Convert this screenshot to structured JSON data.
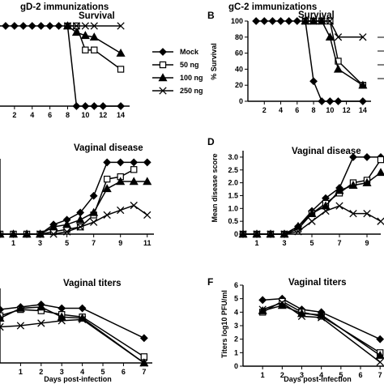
{
  "figure": {
    "group_titles": [
      "gD-2 immunizations",
      "gC-2 immunizations"
    ],
    "x_axis_label": "Days post-infection",
    "legend": [
      "Mock",
      "50 ng",
      "100 ng",
      "250 ng"
    ],
    "series_colors": {
      "Mock": "#000000",
      "50 ng": "#000000",
      "100 ng": "#000000",
      "250 ng": "#000000"
    }
  },
  "chart_data": [
    {
      "id": "A",
      "type": "line",
      "title": "Survival",
      "panel_letter": "",
      "xlabel": "",
      "ylabel": "",
      "x_ticks": [
        2,
        4,
        6,
        8,
        10,
        12,
        14
      ],
      "y_ticks": [],
      "xlim": [
        0,
        15
      ],
      "ylim": [
        0,
        100
      ],
      "series": [
        {
          "name": "Mock",
          "marker": "diamond",
          "x": [
            0,
            1,
            2,
            3,
            4,
            5,
            6,
            7,
            8,
            9,
            10,
            11,
            12,
            14
          ],
          "y": [
            100,
            100,
            100,
            100,
            100,
            100,
            100,
            100,
            100,
            0,
            0,
            0,
            0,
            0
          ]
        },
        {
          "name": "50 ng",
          "marker": "square",
          "x": [
            8,
            9,
            10,
            11,
            14
          ],
          "y": [
            100,
            100,
            70,
            70,
            46
          ]
        },
        {
          "name": "100 ng",
          "marker": "triangle",
          "x": [
            8,
            9,
            10,
            11,
            14
          ],
          "y": [
            100,
            92,
            88,
            86,
            66
          ]
        },
        {
          "name": "250 ng",
          "marker": "x",
          "x": [
            8,
            9,
            10,
            11,
            14
          ],
          "y": [
            100,
            100,
            100,
            100,
            100
          ]
        }
      ]
    },
    {
      "id": "B",
      "type": "line",
      "title": "Survival",
      "panel_letter": "B",
      "xlabel": "",
      "ylabel": "% Survival",
      "x_ticks": [
        2,
        4,
        6,
        8,
        10,
        12,
        14
      ],
      "y_ticks": [
        0,
        20,
        40,
        60,
        80,
        100
      ],
      "xlim": [
        0,
        15
      ],
      "ylim": [
        0,
        100
      ],
      "series": [
        {
          "name": "Mock",
          "marker": "diamond",
          "x": [
            1,
            2,
            3,
            4,
            5,
            6,
            7,
            8,
            9,
            10,
            11,
            14
          ],
          "y": [
            100,
            100,
            100,
            100,
            100,
            100,
            100,
            25,
            0,
            0,
            0,
            0
          ]
        },
        {
          "name": "50 ng",
          "marker": "square",
          "x": [
            7,
            8,
            9,
            10,
            11,
            14
          ],
          "y": [
            100,
            100,
            100,
            100,
            50,
            20
          ]
        },
        {
          "name": "100 ng",
          "marker": "triangle",
          "x": [
            7,
            8,
            9,
            10,
            11,
            14
          ],
          "y": [
            100,
            100,
            100,
            80,
            40,
            20
          ]
        },
        {
          "name": "250 ng",
          "marker": "x",
          "x": [
            7,
            8,
            9,
            10,
            11,
            14
          ],
          "y": [
            100,
            100,
            100,
            100,
            80,
            80
          ]
        }
      ]
    },
    {
      "id": "C",
      "type": "line",
      "title": "Vaginal disease",
      "panel_letter": "",
      "xlabel": "",
      "ylabel": "",
      "x_ticks": [
        1,
        3,
        5,
        7,
        9,
        11
      ],
      "x_tick_labels": [
        "1",
        "3",
        "5",
        "7",
        "9",
        "11"
      ],
      "y_ticks": [],
      "xlim": [
        0,
        11.5
      ],
      "ylim": [
        0,
        3.15
      ],
      "series": [
        {
          "name": "Mock",
          "marker": "diamond",
          "x": [
            0,
            1,
            2,
            3,
            4,
            5,
            6,
            7,
            8,
            9,
            10,
            11
          ],
          "y": [
            0,
            0,
            0,
            0,
            0.4,
            0.6,
            0.9,
            1.6,
            3.0,
            3.0,
            3.0,
            3.0
          ]
        },
        {
          "name": "50 ng",
          "marker": "square",
          "x": [
            0,
            1,
            2,
            3,
            4,
            5,
            6,
            7,
            8,
            9,
            10
          ],
          "y": [
            0,
            0,
            0,
            0,
            0.1,
            0.2,
            0.3,
            0.8,
            2.3,
            2.4,
            2.7
          ]
        },
        {
          "name": "100 ng",
          "marker": "triangle",
          "x": [
            0,
            1,
            2,
            3,
            4,
            5,
            6,
            7,
            8,
            9,
            10,
            11
          ],
          "y": [
            0,
            0,
            0,
            0,
            0.3,
            0.4,
            0.6,
            0.9,
            1.9,
            2.2,
            2.2,
            2.2
          ]
        },
        {
          "name": "250 ng",
          "marker": "x",
          "x": [
            3,
            4,
            5,
            6,
            7,
            8,
            9,
            10,
            11
          ],
          "y": [
            0,
            0,
            0.1,
            0.3,
            0.5,
            0.8,
            1.0,
            1.2,
            0.8
          ]
        }
      ]
    },
    {
      "id": "D",
      "type": "line",
      "title": "Vaginal disease",
      "panel_letter": "D",
      "xlabel": "",
      "ylabel": "Mean disease score",
      "x_ticks": [
        1,
        3,
        5,
        7,
        9
      ],
      "x_tick_labels": [
        "1",
        "3",
        "5",
        "7",
        "9"
      ],
      "y_ticks": [
        0,
        0.5,
        1.0,
        1.5,
        2.0,
        2.5,
        3.0
      ],
      "xlim": [
        0,
        10
      ],
      "ylim": [
        0,
        3.25
      ],
      "series": [
        {
          "name": "Mock",
          "marker": "diamond",
          "x": [
            0,
            1,
            2,
            3,
            4,
            5,
            6,
            7,
            8,
            9,
            10
          ],
          "y": [
            0,
            0,
            0,
            0,
            0.3,
            0.9,
            1.4,
            1.8,
            3.0,
            3.0,
            3.0
          ]
        },
        {
          "name": "50 ng",
          "marker": "square",
          "x": [
            0,
            1,
            2,
            3,
            4,
            5,
            6,
            7,
            8,
            9,
            10
          ],
          "y": [
            0,
            0,
            0,
            0,
            0.2,
            0.8,
            1.2,
            1.6,
            2.0,
            2.1,
            2.9
          ]
        },
        {
          "name": "100 ng",
          "marker": "triangle",
          "x": [
            0,
            1,
            2,
            3,
            4,
            5,
            6,
            7,
            8,
            9,
            10
          ],
          "y": [
            0,
            0,
            0,
            0,
            0.3,
            0.8,
            1.1,
            1.7,
            1.9,
            2.0,
            2.4
          ]
        },
        {
          "name": "250 ng",
          "marker": "x",
          "x": [
            0,
            1,
            2,
            3,
            4,
            5,
            6,
            7,
            8,
            9,
            10
          ],
          "y": [
            0,
            0,
            0,
            0,
            0.1,
            0.5,
            0.9,
            1.1,
            0.8,
            0.8,
            0.5
          ]
        }
      ]
    },
    {
      "id": "E",
      "type": "line",
      "title": "Vaginal titers",
      "panel_letter": "",
      "xlabel": "Days post-infection",
      "ylabel": "",
      "x_ticks": [
        1,
        2,
        3,
        4,
        5,
        6,
        7
      ],
      "y_ticks": [],
      "xlim": [
        0,
        7.4
      ],
      "ylim": [
        0,
        6
      ],
      "series": [
        {
          "name": "Mock",
          "marker": "diamond",
          "x": [
            0,
            1,
            2,
            3,
            4,
            7
          ],
          "y": [
            4.3,
            4.5,
            4.7,
            4.4,
            4.4,
            2.0
          ]
        },
        {
          "name": "50 ng",
          "marker": "square",
          "x": [
            0,
            1,
            2,
            3,
            4,
            7
          ],
          "y": [
            3.8,
            4.3,
            4.2,
            3.9,
            3.7,
            0.5
          ]
        },
        {
          "name": "100 ng",
          "marker": "triangle",
          "x": [
            0,
            1,
            2,
            3,
            4,
            7
          ],
          "y": [
            3.6,
            4.4,
            4.5,
            3.7,
            3.6,
            0.0
          ]
        },
        {
          "name": "250 ng",
          "marker": "x",
          "x": [
            0,
            1,
            2,
            3,
            4,
            7
          ],
          "y": [
            2.9,
            3.0,
            3.2,
            3.4,
            3.5,
            0.0
          ]
        }
      ]
    },
    {
      "id": "F",
      "type": "line",
      "title": "Vaginal titers",
      "panel_letter": "F",
      "xlabel": "Days post-infection",
      "ylabel": "Titers log10 PFU/ml",
      "x_ticks": [
        1,
        2,
        3,
        4,
        5,
        6,
        7
      ],
      "y_ticks": [
        0,
        1,
        2,
        3,
        4,
        5,
        6
      ],
      "xlim": [
        0,
        7.2
      ],
      "ylim": [
        0,
        6
      ],
      "series": [
        {
          "name": "Mock",
          "marker": "diamond",
          "x": [
            1,
            2,
            3,
            4,
            7
          ],
          "y": [
            4.9,
            5.0,
            4.2,
            4.0,
            2.0
          ]
        },
        {
          "name": "50 ng",
          "marker": "square",
          "x": [
            1,
            2,
            3,
            4,
            7
          ],
          "y": [
            4.0,
            4.8,
            4.0,
            3.7,
            1.0
          ]
        },
        {
          "name": "100 ng",
          "marker": "triangle",
          "x": [
            1,
            2,
            3,
            4,
            7
          ],
          "y": [
            4.1,
            4.5,
            3.9,
            3.8,
            0.8
          ]
        },
        {
          "name": "250 ng",
          "marker": "x",
          "x": [
            1,
            2,
            3,
            4,
            7
          ],
          "y": [
            4.2,
            4.7,
            3.7,
            3.6,
            0.3
          ]
        }
      ]
    }
  ]
}
